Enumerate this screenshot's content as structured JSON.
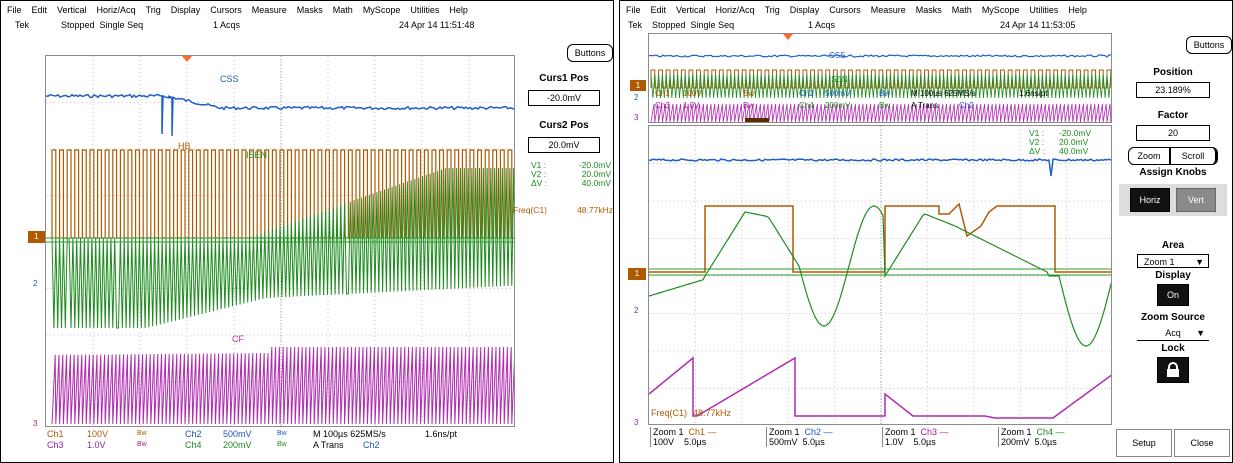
{
  "left": {
    "menu": [
      "File",
      "Edit",
      "Vertical",
      "Horiz/Acq",
      "Trig",
      "Display",
      "Cursors",
      "Measure",
      "Masks",
      "Math",
      "MyScope",
      "Utilities",
      "Help"
    ],
    "status": {
      "brand": "Tek",
      "state": "Stopped",
      "mode": "Single Seq",
      "acqs": "1 Acqs",
      "timestamp": "24 Apr 14 11:51:48"
    },
    "buttons_label": "Buttons",
    "trace_labels": {
      "css": "CSS",
      "hb": "HB",
      "isen": "ISEN",
      "cf": "CF"
    },
    "side": {
      "curs1_title": "Curs1 Pos",
      "curs1_value": "-20.0mV",
      "curs2_title": "Curs2 Pos",
      "curs2_value": "20.0mV",
      "v1_label": "V1 :",
      "v1_value": "-20.0mV",
      "v2_label": "V2 :",
      "v2_value": "20.0mV",
      "dv_label": "ΔV :",
      "dv_value": "40.0mV",
      "freq_label": "Freq(C1)",
      "freq_value": "48.77kHz"
    },
    "bottom": {
      "ch1": "Ch1",
      "ch1_v": "100V",
      "ch3": "Ch3",
      "ch3_v": "1.0V",
      "bw": "Bw",
      "ch2": "Ch2",
      "ch2_v": "500mV",
      "ch4": "Ch4",
      "ch4_v": "200mV",
      "horiz": "M 100µs 625MS/s",
      "res": "1.6ns/pt",
      "trig": "A  Trans",
      "trig_src": "Ch2"
    },
    "markers": {
      "m1": "1",
      "m2": "2",
      "m3": "3"
    }
  },
  "right": {
    "menu": [
      "File",
      "Edit",
      "Vertical",
      "Horiz/Acq",
      "Trig",
      "Display",
      "Cursors",
      "Measure",
      "Masks",
      "Math",
      "MyScope",
      "Utilities",
      "Help"
    ],
    "status": {
      "brand": "Tek",
      "state": "Stopped",
      "mode": "Single Seq",
      "acqs": "1 Acqs",
      "timestamp": "24 Apr 14 11:53:05"
    },
    "buttons_label": "Buttons",
    "overview": {
      "css": "CSS",
      "isen": "ISEN",
      "ch1": "Ch1",
      "ch1_v": "100V",
      "ch2": "Ch2",
      "ch2_v": "500mV",
      "ch3": "Ch3",
      "ch3_v": "1.0V",
      "ch4": "Ch4",
      "ch4_v": "200mV",
      "bw": "Bw",
      "horiz": "M 100µs 625MS/s",
      "res": "1.6ns/pt",
      "trig": "A  Trans",
      "trig_src": "Ch2"
    },
    "cursor_readout": {
      "v1_label": "V1 :",
      "v1_value": "-20.0mV",
      "v2_label": "V2 :",
      "v2_value": "20.0mV",
      "dv_label": "ΔV :",
      "dv_value": "40.0mV"
    },
    "freq_label": "Freq(C1)",
    "freq_value": "48.77kHz",
    "side": {
      "position_title": "Position",
      "position_value": "23.189%",
      "factor_title": "Factor",
      "factor_value": "20",
      "zoom_tab": "Zoom",
      "scroll_tab": "Scroll",
      "assign_title": "Assign Knobs",
      "horiz_btn": "Horiz",
      "vert_btn": "Vert",
      "area_title": "Area",
      "area_value": "Zoom 1",
      "display_title": "Display",
      "display_value": "On",
      "zoom_source_title": "Zoom Source",
      "zoom_source_value": "Acq",
      "lock_title": "Lock",
      "setup_btn": "Setup",
      "close_btn": "Close"
    },
    "bottom": [
      {
        "zoom": "Zoom 1",
        "ch": "Ch1 —",
        "volts": "100V",
        "time": "5.0µs"
      },
      {
        "zoom": "Zoom 1",
        "ch": "Ch2 —",
        "volts": "500mV",
        "time": "5.0µs"
      },
      {
        "zoom": "Zoom 1",
        "ch": "Ch3 —",
        "volts": "1.0V",
        "time": "5.0µs"
      },
      {
        "zoom": "Zoom 1",
        "ch": "Ch4 —",
        "volts": "200mV",
        "time": "5.0µs"
      }
    ],
    "markers": {
      "m1": "1",
      "m2": "2",
      "m3": "3"
    }
  },
  "colors": {
    "ch1": "#b05a00",
    "ch2": "#1f5fc8",
    "ch3": "#b02cb0",
    "ch4": "#1e8c1e",
    "cursor": "#2d9a2d"
  }
}
